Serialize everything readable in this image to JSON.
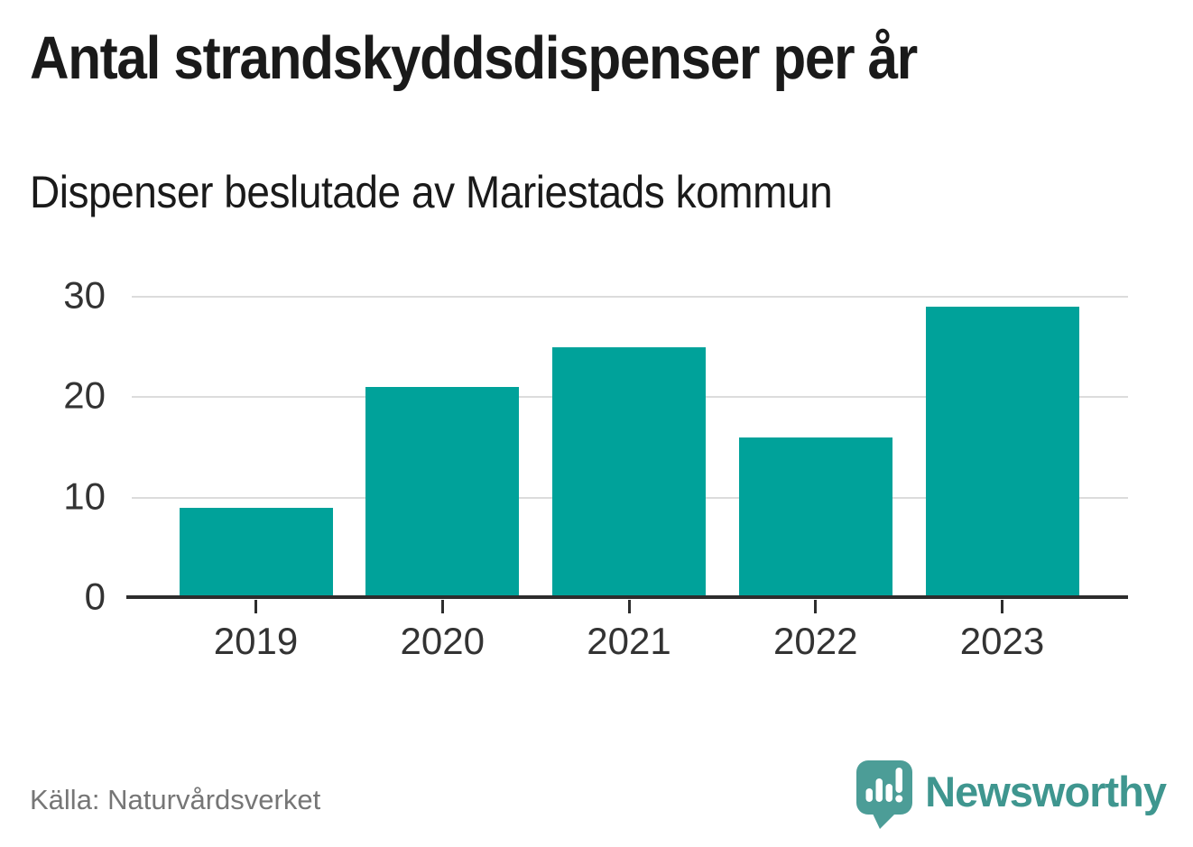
{
  "chart_data": {
    "type": "bar",
    "title": "Antal strandskyddsdispenser per år",
    "subtitle": "Dispenser beslutade av Mariestads kommun",
    "categories": [
      "2019",
      "2020",
      "2021",
      "2022",
      "2023"
    ],
    "values": [
      9,
      21,
      25,
      16,
      29
    ],
    "xlabel": "",
    "ylabel": "",
    "ylim": [
      0,
      30
    ],
    "yticks": [
      0,
      10,
      20,
      30
    ],
    "grid": true,
    "legend": "none",
    "bar_color": "#00A29A"
  },
  "footer": {
    "source": "Källa: Naturvårdsverket",
    "brand": "Newsworthy",
    "logo_icon": "newsworthy-speech-bubble-chart-icon"
  },
  "colors": {
    "bar": "#00A29A",
    "grid": "#dcdcdc",
    "axis": "#2d2d2d",
    "tick_label": "#333333",
    "title_text": "#1a1a1a",
    "source_text": "#767676",
    "logo_icon": "#4C9D97",
    "logo_text": "#3F968F"
  }
}
